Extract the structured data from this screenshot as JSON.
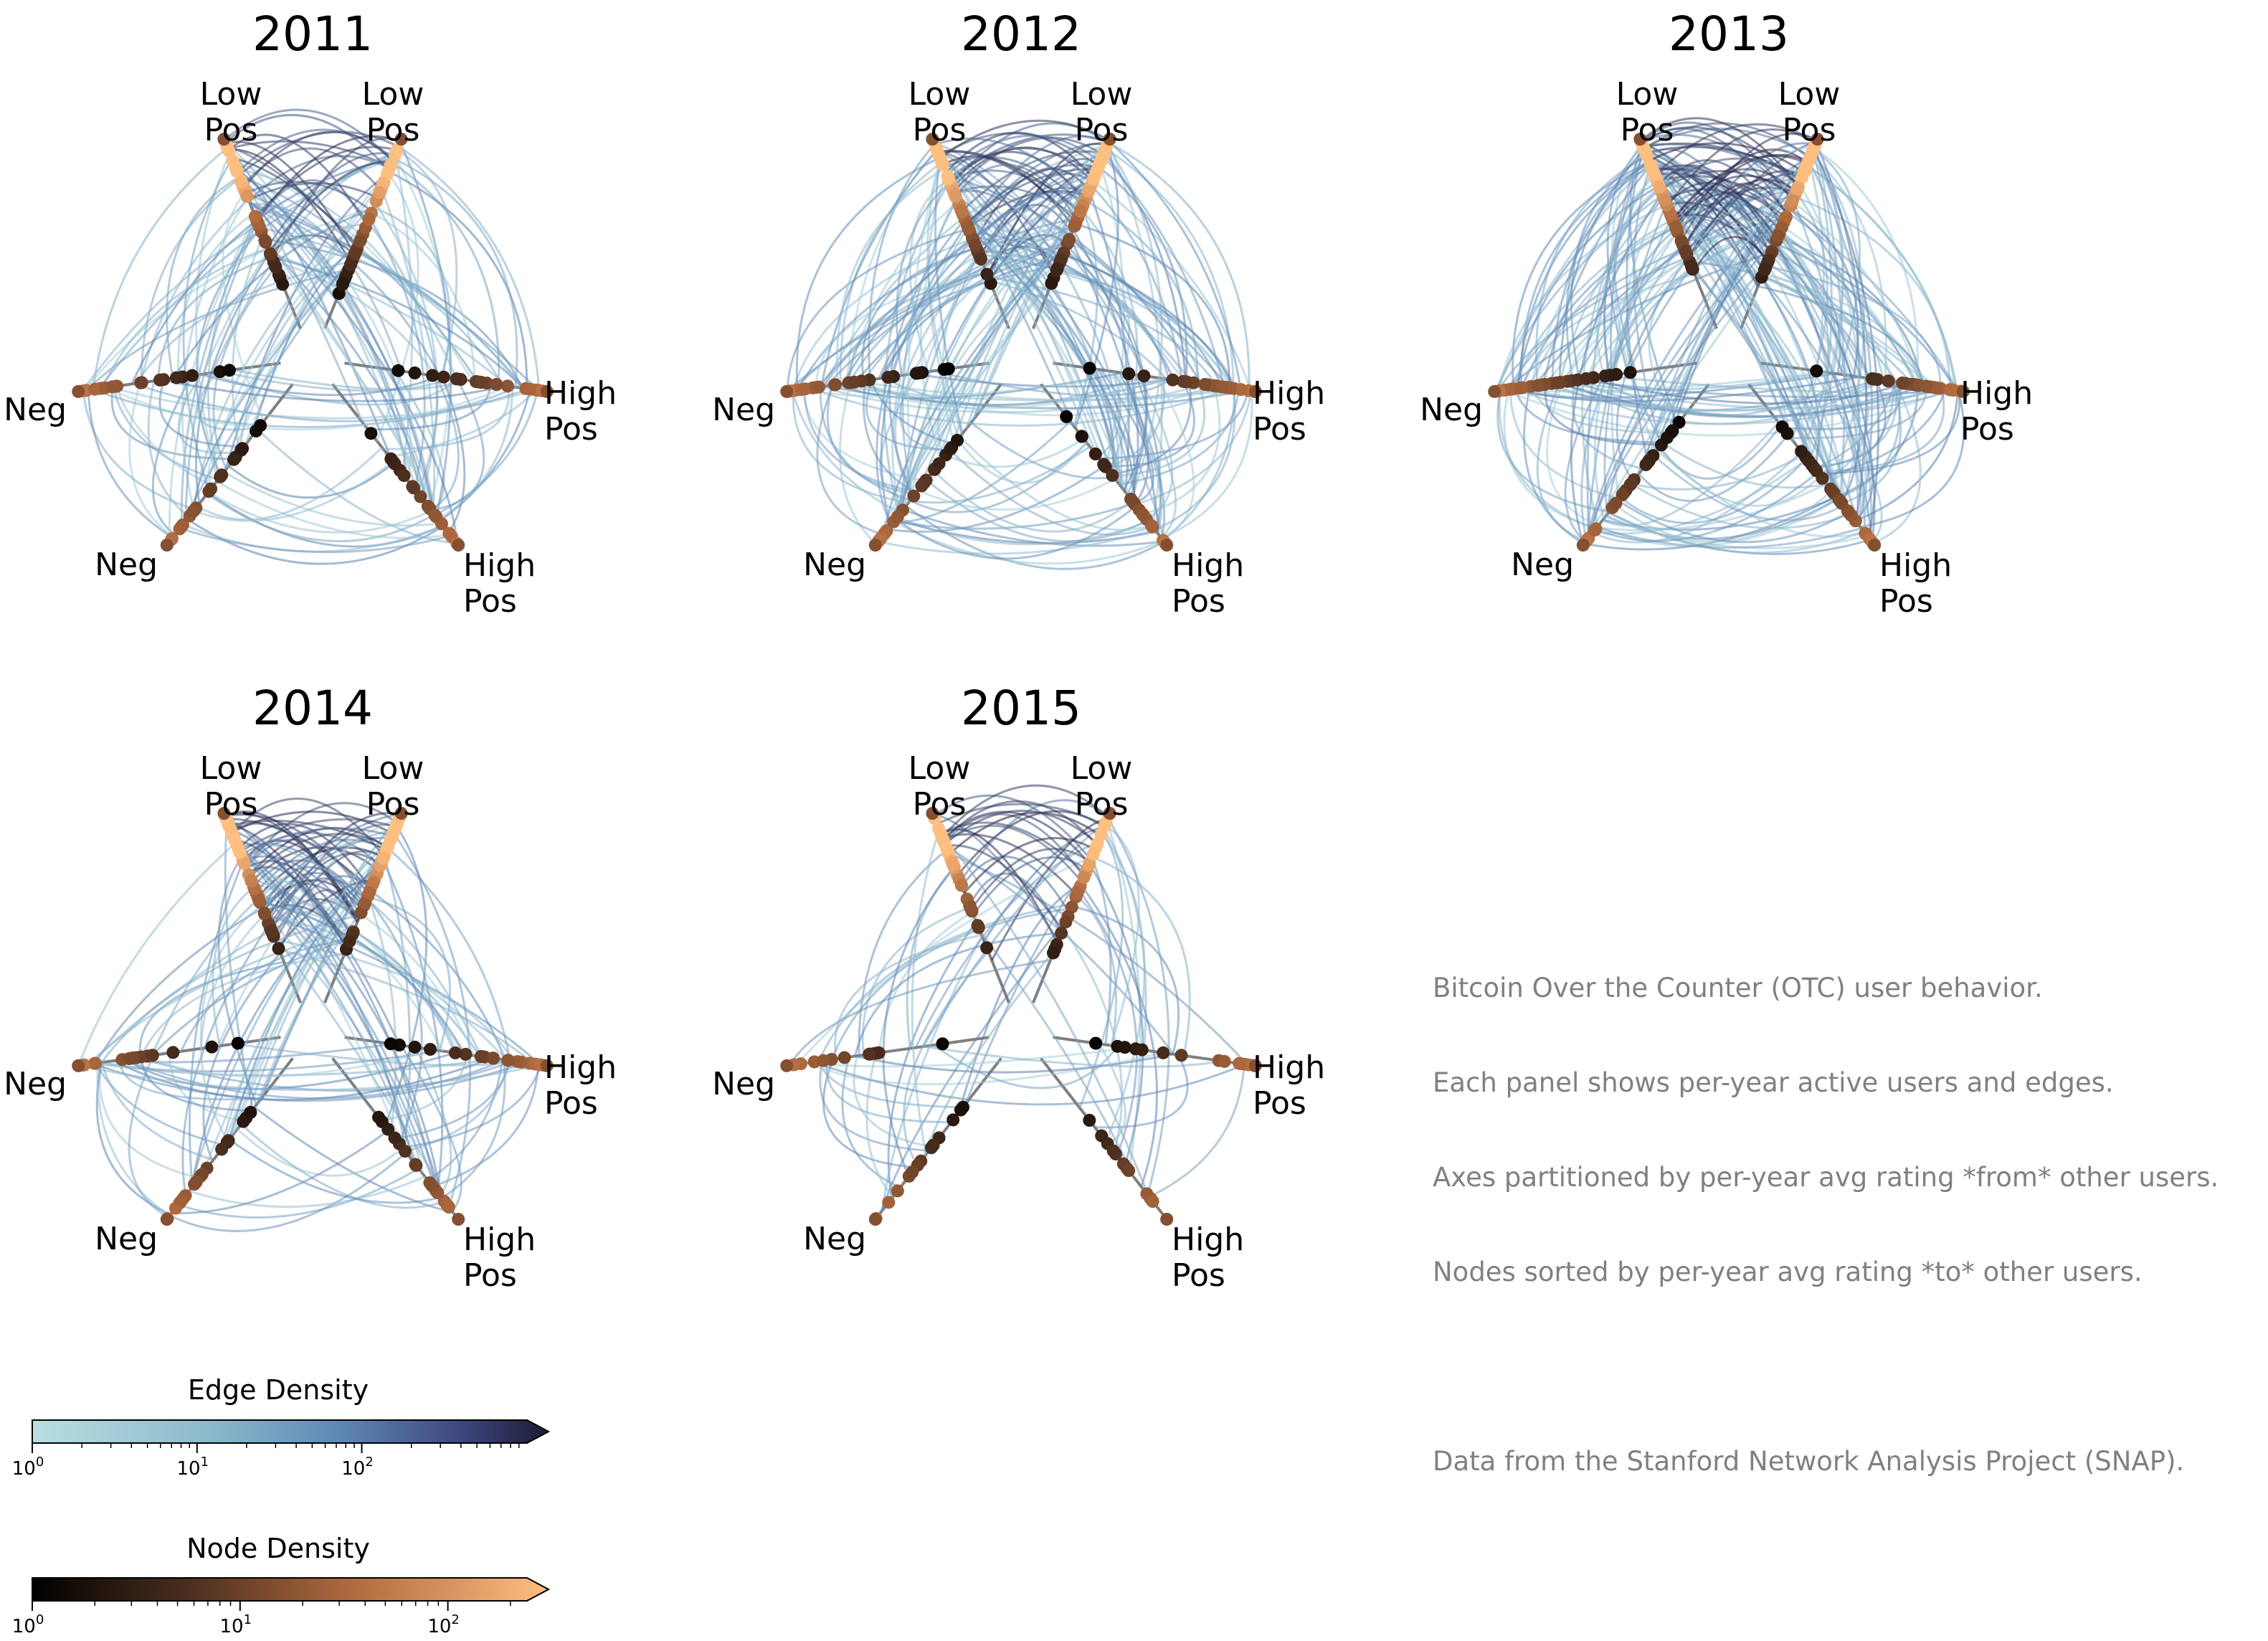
{
  "figure": {
    "panels": [
      {
        "title": "2011",
        "axis_labels": {
          "low_pos_left": "Low\nPos",
          "low_pos_right": "Low\nPos",
          "high_pos_top": "High\nPos",
          "high_pos_bottom": "High\nPos",
          "neg_top": "Neg",
          "neg_bottom": "Neg"
        }
      },
      {
        "title": "2012",
        "axis_labels": {
          "low_pos_left": "Low\nPos",
          "low_pos_right": "Low\nPos",
          "high_pos_top": "High\nPos",
          "high_pos_bottom": "High\nPos",
          "neg_top": "Neg",
          "neg_bottom": "Neg"
        }
      },
      {
        "title": "2013",
        "axis_labels": {
          "low_pos_left": "Low\nPos",
          "low_pos_right": "Low\nPos",
          "high_pos_top": "High\nPos",
          "high_pos_bottom": "High\nPos",
          "neg_top": "Neg",
          "neg_bottom": "Neg"
        }
      },
      {
        "title": "2014",
        "axis_labels": {
          "low_pos_left": "Low\nPos",
          "low_pos_right": "Low\nPos",
          "high_pos_top": "High\nPos",
          "high_pos_bottom": "High\nPos",
          "neg_top": "Neg",
          "neg_bottom": "Neg"
        }
      },
      {
        "title": "2015",
        "axis_labels": {
          "low_pos_left": "Low\nPos",
          "low_pos_right": "Low\nPos",
          "high_pos_top": "High\nPos",
          "high_pos_bottom": "High\nPos",
          "neg_top": "Neg",
          "neg_bottom": "Neg"
        }
      }
    ],
    "info_text": [
      "Bitcoin Over the Counter (OTC) user behavior.",
      "Each panel shows per-year active users and edges.",
      "Axes partitioned by per-year avg rating *from* other users.",
      "Nodes sorted by per-year avg rating *to* other users.",
      "",
      "Data from the Stanford Network Analysis Project (SNAP)."
    ]
  },
  "chart_data": [
    {
      "type": "hive_plot",
      "title": "2011",
      "axes": [
        "Low Pos",
        "Low Pos",
        "High Pos",
        "High Pos",
        "Neg",
        "Neg"
      ],
      "relative_edge_density": 0.55
    },
    {
      "type": "hive_plot",
      "title": "2012",
      "axes": [
        "Low Pos",
        "Low Pos",
        "High Pos",
        "High Pos",
        "Neg",
        "Neg"
      ],
      "relative_edge_density": 0.85
    },
    {
      "type": "hive_plot",
      "title": "2013",
      "axes": [
        "Low Pos",
        "Low Pos",
        "High Pos",
        "High Pos",
        "Neg",
        "Neg"
      ],
      "relative_edge_density": 1.0
    },
    {
      "type": "hive_plot",
      "title": "2014",
      "axes": [
        "Low Pos",
        "Low Pos",
        "High Pos",
        "High Pos",
        "Neg",
        "Neg"
      ],
      "relative_edge_density": 0.55
    },
    {
      "type": "hive_plot",
      "title": "2015",
      "axes": [
        "Low Pos",
        "Low Pos",
        "High Pos",
        "High Pos",
        "Neg",
        "Neg"
      ],
      "relative_edge_density": 0.3
    },
    {
      "type": "colorbar",
      "title": "Edge Density",
      "scale": "log",
      "ticks": [
        "10^0",
        "10^1",
        "10^2"
      ],
      "colormap_start": "#b8dfe0",
      "colormap_mid": "#5e86b4",
      "colormap_end": "#1e1a33",
      "extend": "max"
    },
    {
      "type": "colorbar",
      "title": "Node Density",
      "scale": "log",
      "ticks": [
        "10^0",
        "10^1",
        "10^2"
      ],
      "colormap_start": "#000000",
      "colormap_mid": "#b06a3f",
      "colormap_end": "#ffbf80",
      "extend": "max"
    }
  ],
  "colorbars": {
    "edge": {
      "label": "Edge Density",
      "ticks": [
        {
          "base": "10",
          "exp": "0"
        },
        {
          "base": "10",
          "exp": "1"
        },
        {
          "base": "10",
          "exp": "2"
        }
      ]
    },
    "node": {
      "label": "Node Density",
      "ticks": [
        {
          "base": "10",
          "exp": "0"
        },
        {
          "base": "10",
          "exp": "1"
        },
        {
          "base": "10",
          "exp": "2"
        }
      ]
    }
  }
}
